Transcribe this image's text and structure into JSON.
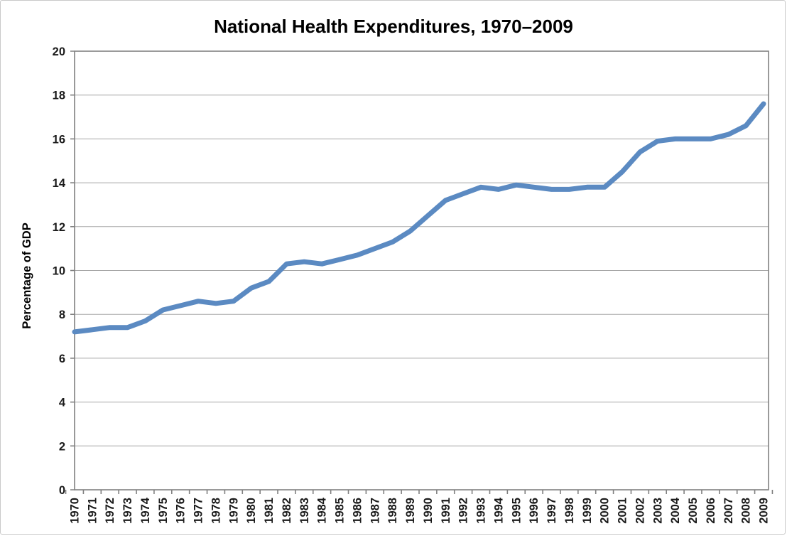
{
  "chart_data": {
    "type": "line",
    "title": "National Health Expenditures, 1970–2009",
    "ylabel": "Percentage of GDP",
    "xlabel": "",
    "categories": [
      "1970",
      "1971",
      "1972",
      "1973",
      "1974",
      "1975",
      "1976",
      "1977",
      "1978",
      "1979",
      "1980",
      "1981",
      "1982",
      "1983",
      "1984",
      "1985",
      "1986",
      "1987",
      "1988",
      "1989",
      "1990",
      "1991",
      "1992",
      "1993",
      "1994",
      "1995",
      "1996",
      "1997",
      "1998",
      "1999",
      "2000",
      "2001",
      "2002",
      "2003",
      "2004",
      "2005",
      "2006",
      "2007",
      "2008",
      "2009"
    ],
    "values": [
      7.2,
      7.3,
      7.4,
      7.4,
      7.7,
      8.2,
      8.4,
      8.6,
      8.5,
      8.6,
      9.2,
      9.5,
      10.3,
      10.4,
      10.3,
      10.5,
      10.7,
      11.0,
      11.3,
      11.8,
      12.5,
      13.2,
      13.5,
      13.8,
      13.7,
      13.9,
      13.8,
      13.7,
      13.7,
      13.8,
      13.8,
      14.5,
      15.4,
      15.9,
      16.0,
      16.0,
      16.0,
      16.2,
      16.6,
      17.6
    ],
    "ylim": [
      0,
      20
    ],
    "ytick_step": 2,
    "ytick_labels": [
      "0",
      "2",
      "4",
      "6",
      "8",
      "10",
      "12",
      "14",
      "16",
      "18",
      "20"
    ],
    "grid": "horizontal",
    "legend": "none",
    "colors": {
      "line": "#5b8ac2",
      "gridline": "#a6a6a6",
      "axis": "#808080",
      "text": "#1a1a1a",
      "frame_border": "#c9c9c9"
    }
  }
}
